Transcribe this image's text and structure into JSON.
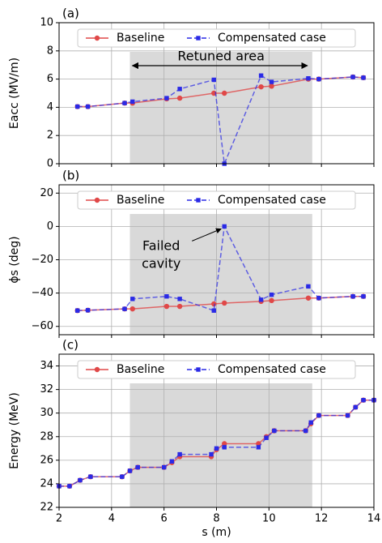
{
  "chart_data": [
    {
      "type": "line",
      "label": "(a)",
      "ylabel": "Eacc (MV/m)",
      "x": [
        2.7,
        3.1,
        4.5,
        4.8,
        6.1,
        6.6,
        7.9,
        8.3,
        9.7,
        10.1,
        11.5,
        11.9,
        13.2,
        13.6
      ],
      "series": [
        {
          "name": "Baseline",
          "color": "#e04848",
          "values": [
            4.05,
            4.05,
            4.3,
            4.3,
            4.6,
            4.65,
            5.0,
            5.0,
            5.45,
            5.5,
            6.0,
            6.0,
            6.15,
            6.1
          ]
        },
        {
          "name": "Compensated case",
          "color": "#2a2ae6",
          "values": [
            4.05,
            4.05,
            4.3,
            4.4,
            4.65,
            5.3,
            5.95,
            0,
            6.25,
            5.8,
            6.05,
            6.0,
            6.15,
            6.1
          ]
        }
      ],
      "xlim": [
        2,
        14
      ],
      "xticks": [
        2,
        4,
        6,
        8,
        10,
        12,
        14
      ],
      "ylim": [
        0,
        10
      ],
      "yticks": [
        0,
        2,
        4,
        6,
        8,
        10
      ],
      "shaded_region": [
        4.7,
        11.65
      ],
      "annotation": "Retuned area",
      "grid": true,
      "legend": "upper center"
    },
    {
      "type": "line",
      "label": "(b)",
      "ylabel": "ϕs (deg)",
      "x": [
        2.7,
        3.1,
        4.5,
        4.8,
        6.1,
        6.6,
        7.9,
        8.3,
        9.7,
        10.1,
        11.5,
        11.9,
        13.2,
        13.6
      ],
      "series": [
        {
          "name": "Baseline",
          "color": "#e04848",
          "values": [
            -50.5,
            -50.3,
            -49.5,
            -49.5,
            -48,
            -48,
            -46.5,
            -46,
            -45,
            -44.5,
            -43,
            -43,
            -42,
            -42
          ]
        },
        {
          "name": "Compensated case",
          "color": "#2a2ae6",
          "values": [
            -50.5,
            -50.3,
            -49.5,
            -43.5,
            -42,
            -43.5,
            -50.5,
            0,
            -44,
            -41,
            -36,
            -43,
            -42,
            -42
          ]
        }
      ],
      "xlim": [
        2,
        14
      ],
      "xticks": [
        2,
        4,
        6,
        8,
        10,
        12,
        14
      ],
      "ylim": [
        -65,
        25
      ],
      "yticks": [
        {
          "value": -60,
          "label": "−60"
        },
        {
          "value": -40,
          "label": "−40"
        },
        {
          "value": -20,
          "label": "−20"
        },
        0,
        20
      ],
      "shaded_region": [
        4.7,
        11.65
      ],
      "annotation": "Failed\ncavity",
      "grid": true,
      "legend": "upper center"
    },
    {
      "type": "line",
      "label": "(c)",
      "ylabel": "Energy (MeV)",
      "xlabel": "s (m)",
      "x": [
        2,
        2.4,
        2.8,
        3.2,
        4.4,
        4.7,
        5.0,
        6.0,
        6.3,
        6.6,
        7.8,
        8.0,
        8.3,
        9.6,
        9.9,
        10.2,
        11.4,
        11.6,
        11.9,
        13.0,
        13.3,
        13.6,
        14
      ],
      "series": [
        {
          "name": "Baseline",
          "color": "#e04848",
          "values": [
            23.8,
            23.8,
            24.3,
            24.6,
            24.6,
            25.1,
            25.4,
            25.4,
            25.8,
            26.3,
            26.3,
            26.9,
            27.4,
            27.4,
            28.0,
            28.5,
            28.5,
            29.1,
            29.8,
            29.8,
            30.5,
            31.1,
            31.1
          ]
        },
        {
          "name": "Compensated case",
          "color": "#2a2ae6",
          "values": [
            23.8,
            23.8,
            24.3,
            24.6,
            24.6,
            25.1,
            25.4,
            25.4,
            25.9,
            26.5,
            26.5,
            27.0,
            27.1,
            27.1,
            27.9,
            28.5,
            28.5,
            29.2,
            29.8,
            29.8,
            30.5,
            31.1,
            31.1
          ]
        }
      ],
      "xlim": [
        2,
        14
      ],
      "xticks": [
        2,
        4,
        6,
        8,
        10,
        12,
        14
      ],
      "ylim": [
        22,
        35
      ],
      "yticks": [
        22,
        24,
        26,
        28,
        30,
        32,
        34
      ],
      "shaded_region": [
        4.7,
        11.65
      ],
      "grid": true,
      "legend": "upper center"
    }
  ]
}
